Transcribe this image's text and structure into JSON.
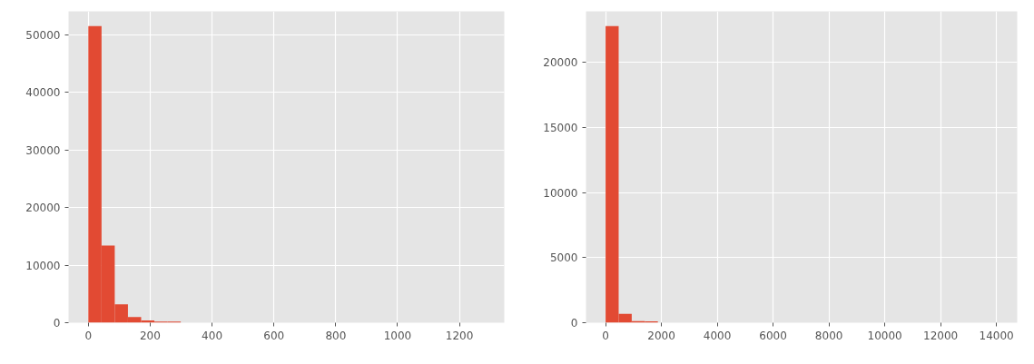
{
  "chart_data": [
    {
      "type": "histogram",
      "bins": [
        0,
        42.7,
        85.4,
        128.1,
        170.8,
        213.5,
        256.2,
        298.9,
        341.6,
        384.3,
        427,
        469.7,
        512.4,
        555.1,
        597.8,
        640.5,
        683.2,
        725.9,
        768.6,
        811.3,
        854,
        896.7,
        939.4,
        982.1,
        1024.8,
        1067.5,
        1110.2,
        1152.9,
        1195.6,
        1238.3,
        1281
      ],
      "values": [
        51500,
        13400,
        3200,
        1000,
        400,
        200,
        200,
        0,
        0,
        0,
        0,
        0,
        0,
        0,
        0,
        0,
        0,
        0,
        0,
        0,
        0,
        0,
        0,
        0,
        0,
        0,
        0,
        0,
        0,
        0
      ],
      "color": "#e24a33",
      "xlim": [
        -64,
        1345
      ],
      "ylim": [
        0,
        54075
      ],
      "xticks": [
        0,
        200,
        400,
        600,
        800,
        1000,
        1200
      ],
      "yticks": [
        0,
        10000,
        20000,
        30000,
        40000,
        50000
      ],
      "grid": true
    },
    {
      "type": "histogram",
      "bins": [
        0,
        468,
        936,
        1404,
        1872,
        2340,
        2808,
        3276,
        3744,
        4212,
        4680,
        5148,
        5616,
        6084,
        6552,
        7020,
        7488,
        7956,
        8424,
        8892,
        9360,
        9828,
        10296,
        10764,
        11232,
        11700,
        12168,
        12636,
        13104,
        13572,
        14040
      ],
      "values": [
        22800,
        680,
        120,
        100,
        0,
        0,
        0,
        0,
        0,
        0,
        0,
        0,
        0,
        0,
        0,
        0,
        0,
        0,
        0,
        0,
        0,
        0,
        0,
        0,
        0,
        0,
        0,
        0,
        0,
        0
      ],
      "color": "#e24a33",
      "xlim": [
        -702,
        14742
      ],
      "ylim": [
        0,
        23940
      ],
      "xticks": [
        0,
        2000,
        4000,
        6000,
        8000,
        10000,
        12000,
        14000
      ],
      "yticks": [
        0,
        5000,
        10000,
        15000,
        20000
      ],
      "grid": true
    }
  ]
}
